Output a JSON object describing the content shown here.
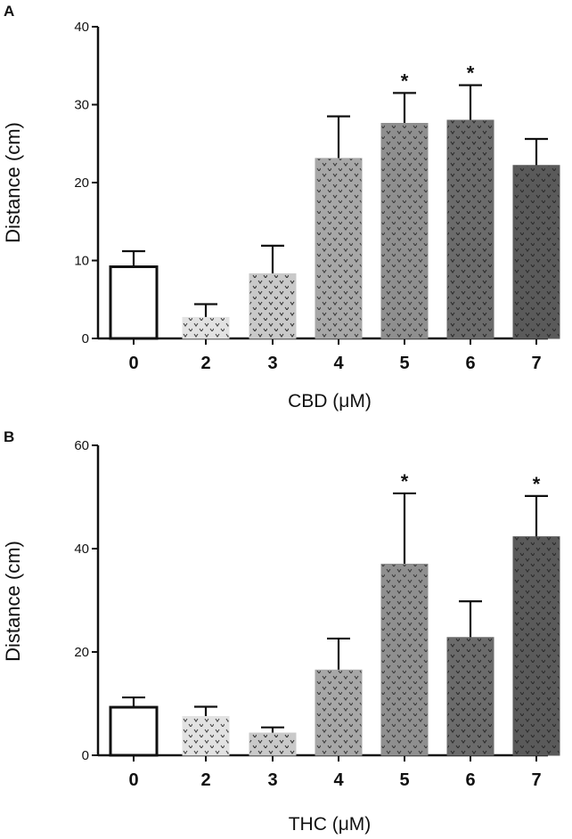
{
  "chart_data": [
    {
      "panel_label": "A",
      "type": "bar",
      "categories": [
        "0",
        "2",
        "3",
        "4",
        "5",
        "6",
        "7"
      ],
      "values": [
        9.2,
        2.7,
        8.3,
        23.1,
        27.6,
        28.0,
        22.2
      ],
      "errors": [
        2.0,
        1.7,
        3.6,
        5.4,
        3.9,
        4.5,
        3.4
      ],
      "significance": [
        "",
        "",
        "",
        "",
        "*",
        "*",
        ""
      ],
      "xlabel": "CBD (μM)",
      "ylabel": "Distance (cm)",
      "ylim": [
        0,
        40
      ],
      "yticks": [
        0,
        10,
        20,
        30,
        40
      ],
      "grid": false
    },
    {
      "panel_label": "B",
      "type": "bar",
      "categories": [
        "0",
        "2",
        "3",
        "4",
        "5",
        "6",
        "7"
      ],
      "values": [
        9.3,
        7.5,
        4.3,
        16.5,
        37.0,
        22.8,
        42.3
      ],
      "errors": [
        1.9,
        1.9,
        1.1,
        6.1,
        13.7,
        7.0,
        7.9
      ],
      "significance": [
        "",
        "",
        "",
        "",
        "*",
        "",
        "*"
      ],
      "xlabel": "THC (μM)",
      "ylabel": "Distance (cm)",
      "ylim": [
        0,
        60
      ],
      "yticks": [
        0,
        20,
        40,
        60
      ],
      "grid": false
    }
  ],
  "style": {
    "bar_fills": [
      "#ffffff",
      "#e2e2e2",
      "#c9c9c9",
      "#a7a7a7",
      "#8f8f8f",
      "#6b6b6b",
      "#5a5a5a"
    ],
    "dot_colors": [
      "",
      "#444444",
      "#333333",
      "#3a3a3a",
      "#3a3a3a",
      "#2b2b2b",
      "#2b2b2b"
    ],
    "axis_color": "#111111"
  }
}
